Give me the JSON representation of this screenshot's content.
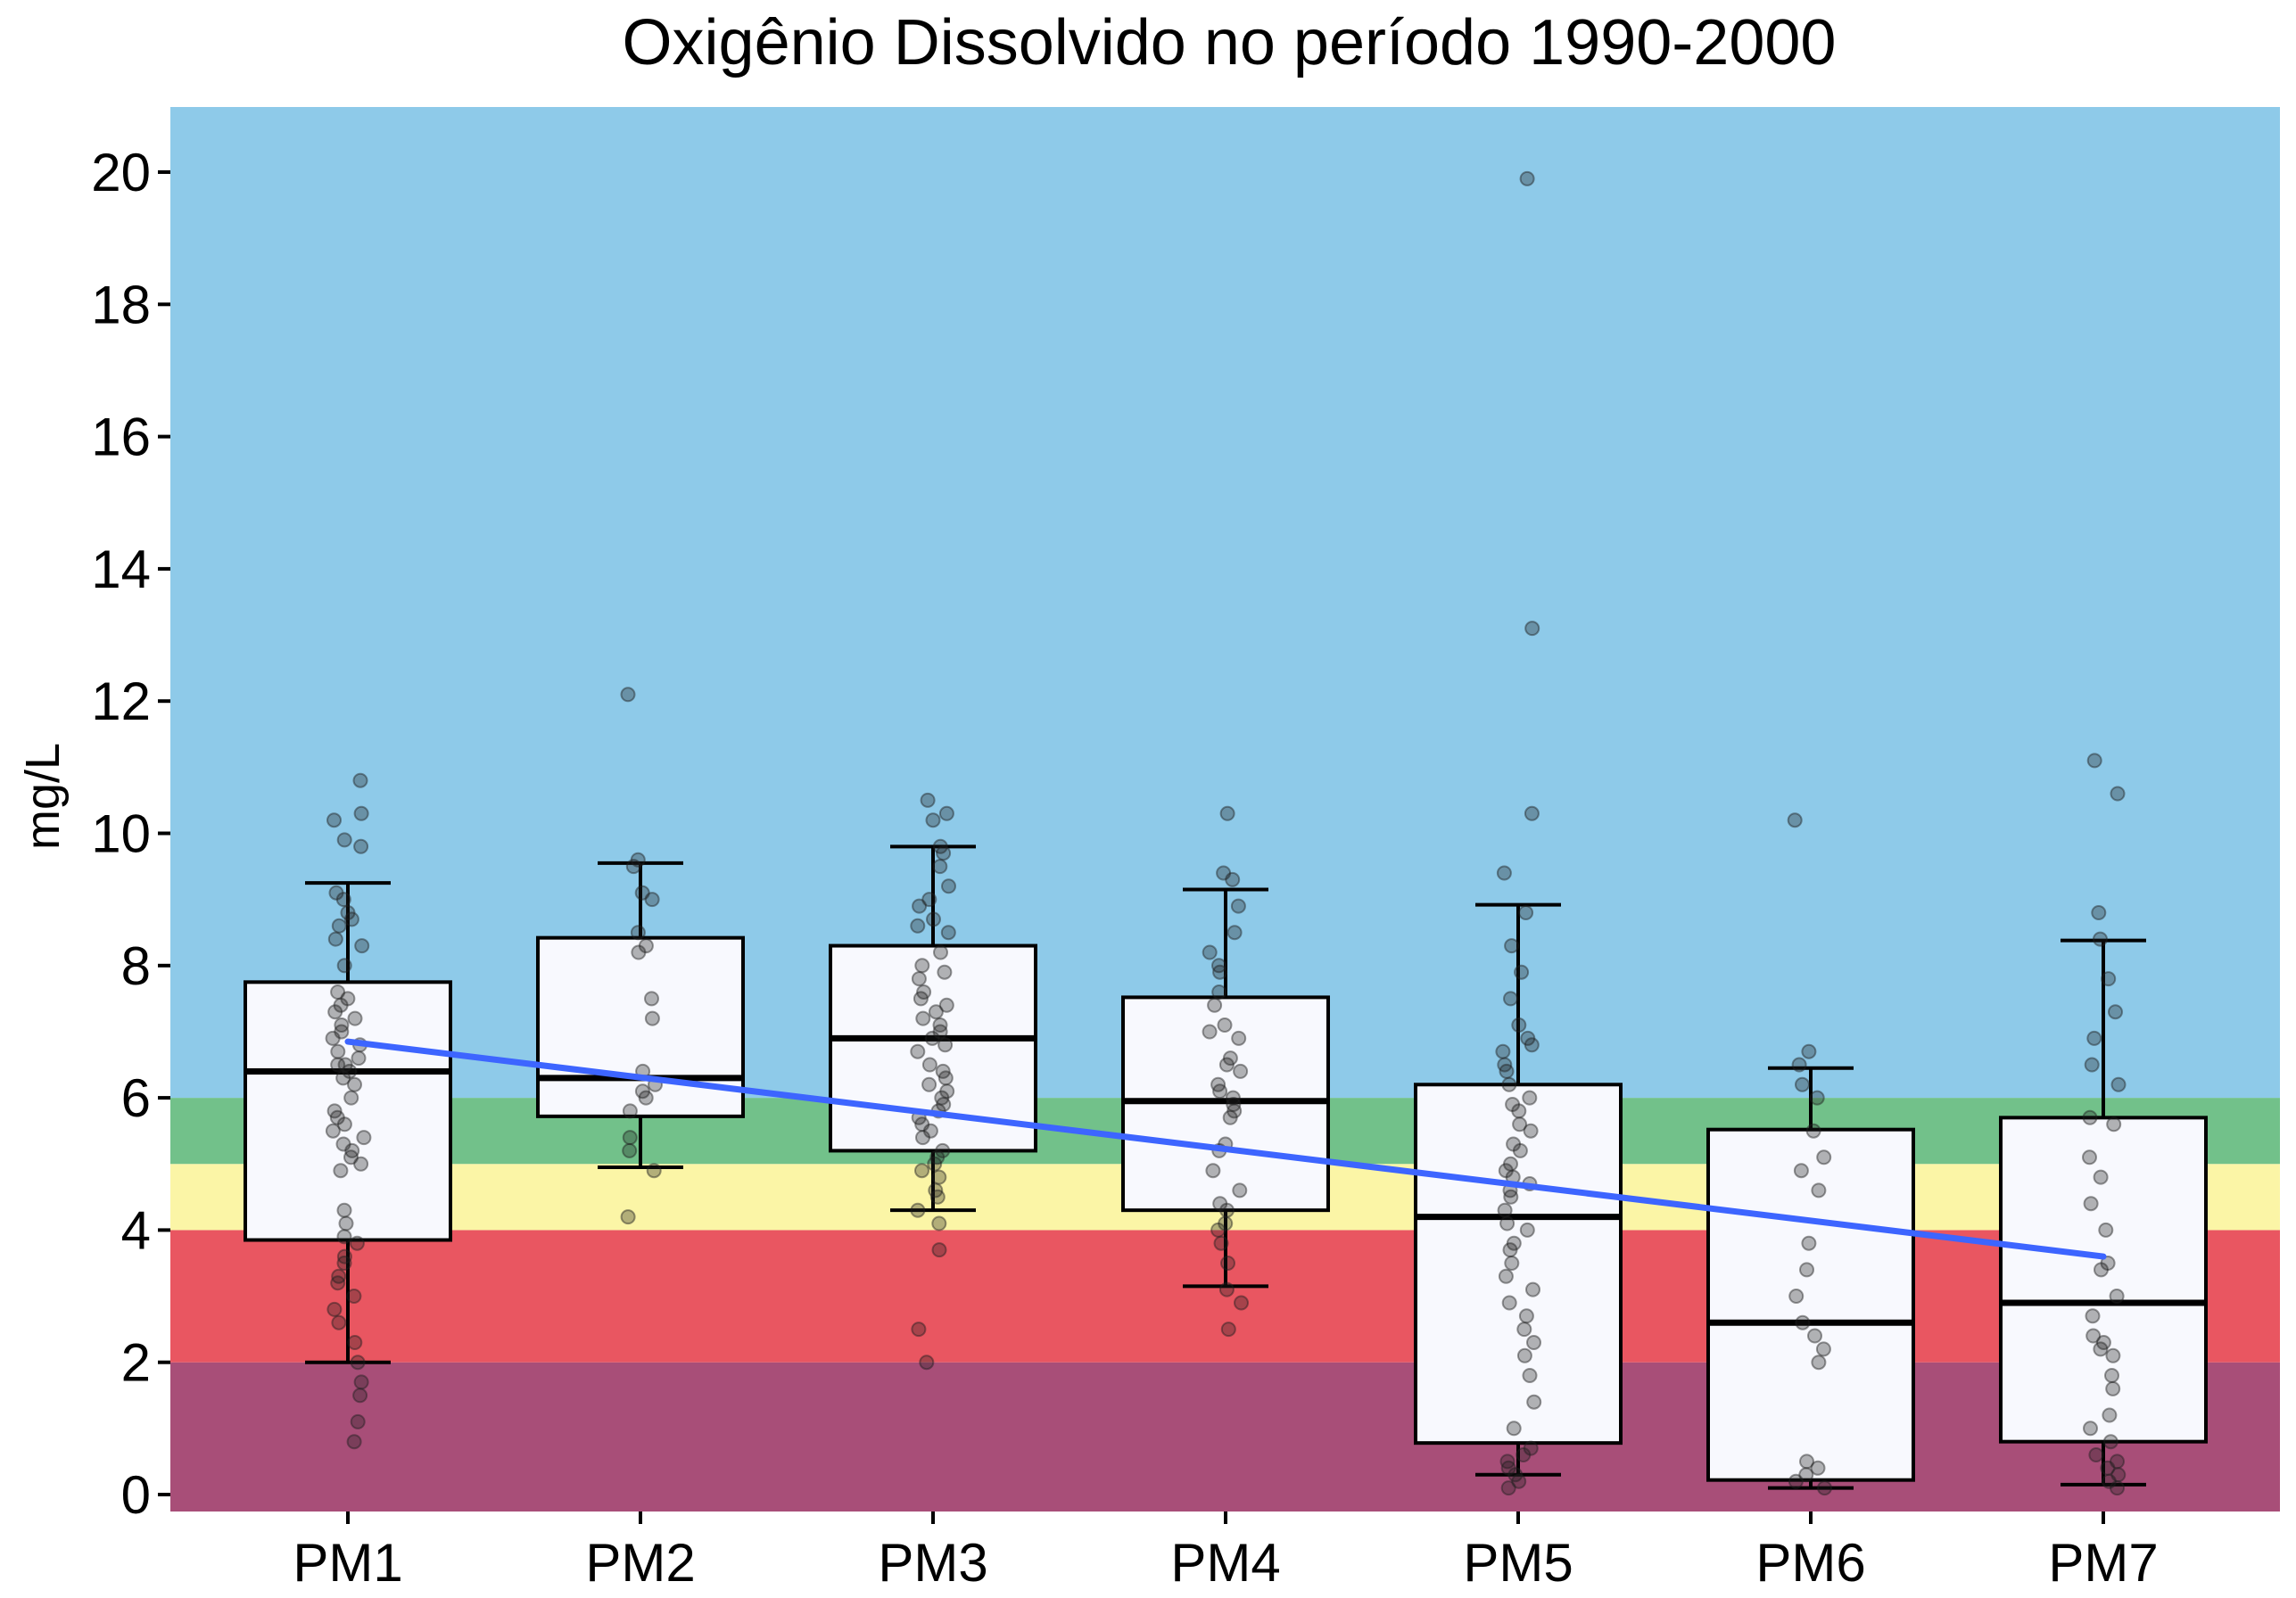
{
  "chart_data": {
    "type": "box",
    "title": "Oxigênio Dissolvido no período 1990-2000",
    "ylabel": "mg/L",
    "xlabel": "",
    "categories": [
      "PM1",
      "PM2",
      "PM3",
      "PM4",
      "PM5",
      "PM6",
      "PM7"
    ],
    "ylim": [
      -0.3,
      21
    ],
    "yticks": [
      0,
      2,
      4,
      6,
      8,
      10,
      12,
      14,
      16,
      18,
      20
    ],
    "grid": false,
    "bands": [
      {
        "from": -0.3,
        "to": 2,
        "color": "#a84e78"
      },
      {
        "from": 2,
        "to": 4,
        "color": "#e95661"
      },
      {
        "from": 4,
        "to": 5,
        "color": "#fbf5a6"
      },
      {
        "from": 5,
        "to": 6,
        "color": "#72c18a"
      },
      {
        "from": 6,
        "to": 21,
        "color": "#8ecae9"
      }
    ],
    "boxes": [
      {
        "category": "PM1",
        "whisker_low": 2.0,
        "q1": 3.85,
        "median": 6.4,
        "q3": 7.75,
        "whisker_high": 9.25,
        "points": [
          10.8,
          10.3,
          10.2,
          9.9,
          9.8,
          9.1,
          9.0,
          8.8,
          8.7,
          8.6,
          8.4,
          8.3,
          8.0,
          7.6,
          7.5,
          7.4,
          7.3,
          7.2,
          7.1,
          7.0,
          6.9,
          6.8,
          6.7,
          6.6,
          6.5,
          6.5,
          6.4,
          6.3,
          6.2,
          6.0,
          5.8,
          5.7,
          5.6,
          5.5,
          5.4,
          5.3,
          5.2,
          5.1,
          5.0,
          4.9,
          4.3,
          4.1,
          3.9,
          3.8,
          3.6,
          3.5,
          3.3,
          3.2,
          3.0,
          2.8,
          2.6,
          2.3,
          2.0,
          1.7,
          1.5,
          1.1,
          0.8
        ]
      },
      {
        "category": "PM2",
        "whisker_low": 4.95,
        "q1": 5.72,
        "median": 6.3,
        "q3": 8.42,
        "whisker_high": 9.55,
        "points": [
          12.1,
          9.6,
          9.5,
          9.1,
          9.0,
          8.5,
          8.3,
          8.2,
          7.5,
          7.2,
          6.4,
          6.2,
          6.1,
          6.0,
          5.8,
          5.4,
          5.2,
          4.9,
          4.2
        ]
      },
      {
        "category": "PM3",
        "whisker_low": 4.3,
        "q1": 5.2,
        "median": 6.9,
        "q3": 8.3,
        "whisker_high": 9.8,
        "points": [
          10.5,
          10.3,
          10.2,
          9.8,
          9.7,
          9.5,
          9.2,
          9.0,
          8.9,
          8.7,
          8.6,
          8.5,
          8.2,
          8.0,
          7.9,
          7.8,
          7.6,
          7.5,
          7.4,
          7.3,
          7.2,
          7.1,
          7.0,
          6.9,
          6.8,
          6.7,
          6.5,
          6.4,
          6.3,
          6.2,
          6.1,
          6.0,
          5.9,
          5.8,
          5.7,
          5.6,
          5.5,
          5.4,
          5.2,
          5.1,
          5.0,
          4.9,
          4.8,
          4.6,
          4.5,
          4.3,
          4.1,
          3.7,
          2.5,
          2.0
        ]
      },
      {
        "category": "PM4",
        "whisker_low": 3.15,
        "q1": 4.3,
        "median": 5.95,
        "q3": 7.52,
        "whisker_high": 9.15,
        "points": [
          10.3,
          9.4,
          9.3,
          8.9,
          8.5,
          8.2,
          8.0,
          7.9,
          7.6,
          7.4,
          7.1,
          7.0,
          6.9,
          6.6,
          6.5,
          6.4,
          6.2,
          6.1,
          6.0,
          5.9,
          5.8,
          5.7,
          5.3,
          5.2,
          4.9,
          4.6,
          4.4,
          4.3,
          4.1,
          4.0,
          3.8,
          3.5,
          3.1,
          2.9,
          2.5
        ]
      },
      {
        "category": "PM5",
        "whisker_low": 0.3,
        "q1": 0.78,
        "median": 4.2,
        "q3": 6.2,
        "whisker_high": 8.92,
        "points": [
          19.9,
          13.1,
          10.3,
          9.4,
          8.8,
          8.3,
          7.9,
          7.5,
          7.1,
          6.9,
          6.8,
          6.7,
          6.5,
          6.4,
          6.2,
          6.0,
          5.9,
          5.8,
          5.6,
          5.5,
          5.3,
          5.2,
          5.0,
          4.9,
          4.8,
          4.7,
          4.6,
          4.5,
          4.3,
          4.1,
          4.0,
          3.8,
          3.7,
          3.5,
          3.3,
          3.1,
          2.9,
          2.7,
          2.5,
          2.3,
          2.1,
          1.8,
          1.4,
          1.0,
          0.7,
          0.6,
          0.5,
          0.4,
          0.3,
          0.2,
          0.1
        ]
      },
      {
        "category": "PM6",
        "whisker_low": 0.1,
        "q1": 0.22,
        "median": 2.6,
        "q3": 5.52,
        "whisker_high": 6.45,
        "points": [
          10.2,
          6.7,
          6.5,
          6.2,
          6.0,
          5.5,
          5.1,
          4.9,
          4.6,
          3.8,
          3.4,
          3.0,
          2.6,
          2.4,
          2.2,
          2.0,
          0.5,
          0.4,
          0.3,
          0.2,
          0.1
        ]
      },
      {
        "category": "PM7",
        "whisker_low": 0.15,
        "q1": 0.8,
        "median": 2.9,
        "q3": 5.7,
        "whisker_high": 8.38,
        "points": [
          11.1,
          10.6,
          8.8,
          8.4,
          7.8,
          7.3,
          6.9,
          6.5,
          6.2,
          5.7,
          5.6,
          5.1,
          4.8,
          4.4,
          4.0,
          3.5,
          3.4,
          3.0,
          2.7,
          2.4,
          2.3,
          2.2,
          2.1,
          1.8,
          1.6,
          1.2,
          1.0,
          0.8,
          0.6,
          0.5,
          0.4,
          0.3,
          0.2,
          0.1
        ]
      }
    ],
    "trend": {
      "x_from": "PM1",
      "y_from": 6.85,
      "x_to": "PM7",
      "y_to": 3.6,
      "color": "#3d65ff"
    },
    "colors": {
      "box_fill": "#f8f9fe",
      "box_line": "#000000",
      "point": "#1f1f1f"
    }
  }
}
